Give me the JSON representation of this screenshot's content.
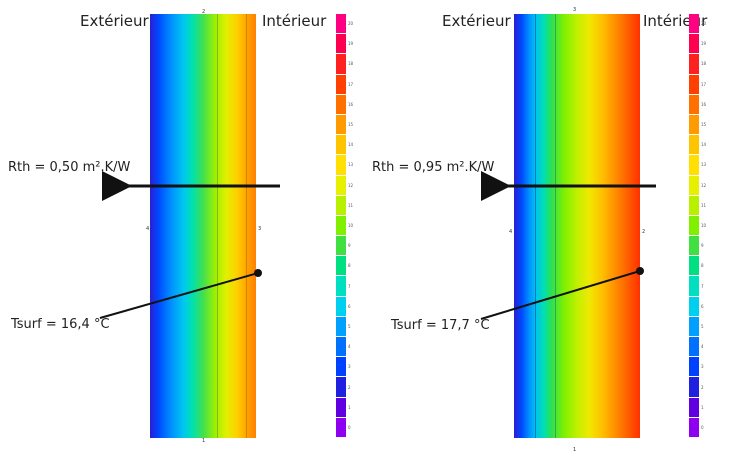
{
  "panels": [
    {
      "exterior_label": "Extérieur",
      "interior_label": "Intérieur",
      "rth_label": "Rth = 0,50 m².K/W",
      "tsurf_label": "Tsurf = 16,4 °C",
      "node_top": "2",
      "node_left": "4",
      "node_right": "3",
      "node_bottom": "1"
    },
    {
      "exterior_label": "Extérieur",
      "interior_label": "Intérieur",
      "rth_label": "Rth = 0,95 m².K/W",
      "tsurf_label": "Tsurf = 17,7 °C",
      "node_top": "3",
      "node_left": "4",
      "node_right": "2",
      "node_bottom": "1"
    }
  ],
  "scale_ticks": [
    "20",
    "19",
    "18",
    "17",
    "16",
    "15",
    "14",
    "13",
    "12",
    "11",
    "10",
    "9",
    "8",
    "7",
    "6",
    "5",
    "4",
    "3",
    "2",
    "1",
    "0"
  ],
  "scale_colors": [
    "#ff0080",
    "#ff0050",
    "#ff2020",
    "#ff4000",
    "#ff7000",
    "#ff9a00",
    "#ffc400",
    "#ffe000",
    "#e6f000",
    "#b8f000",
    "#80f000",
    "#40e040",
    "#00e080",
    "#00e0c0",
    "#00d0f0",
    "#00a0ff",
    "#0070ff",
    "#0040ff",
    "#2020e0",
    "#6000e0",
    "#9000f0"
  ],
  "colors": {
    "arrow": "#111111",
    "wall_left": [
      "#2020d0",
      "#0050ff",
      "#0090ff",
      "#00c8f0",
      "#00e0b0",
      "#40e050",
      "#a0f000",
      "#e0f000",
      "#ffd000",
      "#ff9000"
    ],
    "wall_right": [
      "#2020d0",
      "#0050ff",
      "#0090ff",
      "#00c8f0",
      "#00e0b0",
      "#40e050",
      "#a0f000",
      "#e0f000",
      "#ffd000",
      "#ffa000",
      "#ff6000",
      "#ff3000"
    ]
  }
}
